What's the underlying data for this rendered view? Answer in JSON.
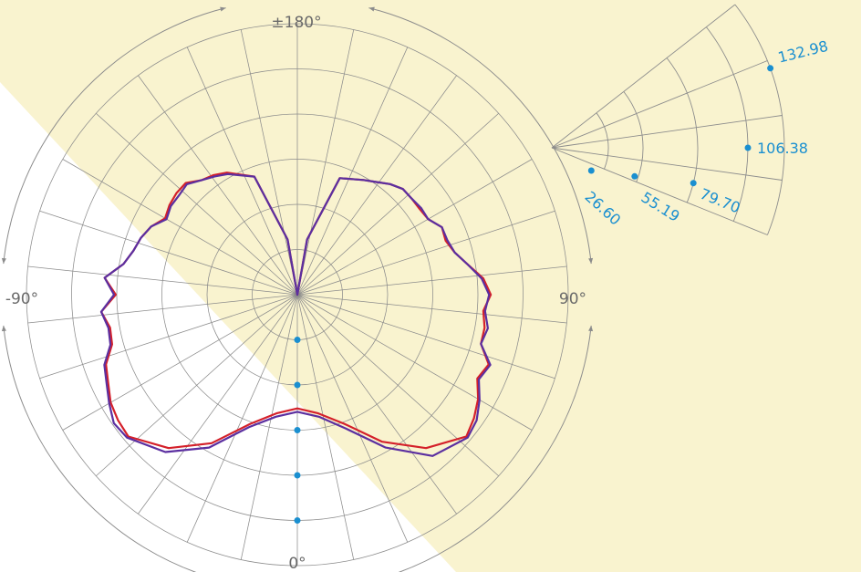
{
  "colors": {
    "background": "#ffffff",
    "highlight": "#f9f3cf",
    "grid": "#8c8c8c",
    "label_text": "#6a6a6a",
    "scale_accent": "#1a8fd0",
    "series_red": "#d4202a",
    "series_purple": "#5b2fa0"
  },
  "chart_data": {
    "type": "polar",
    "title": "",
    "angle_labels": [
      {
        "angle": 180,
        "text": "±180°"
      },
      {
        "angle": 90,
        "text": "90°"
      },
      {
        "angle": 0,
        "text": "0°"
      },
      {
        "angle": -90,
        "text": "-90°"
      }
    ],
    "radial_scale": {
      "max": 159.6,
      "rings": 6,
      "spokes_every_deg": 12,
      "labels": [
        26.6,
        55.19,
        79.7,
        106.38,
        132.98
      ],
      "label_text": [
        "26.60",
        "55.19",
        "79.70",
        "106.38",
        "132.98"
      ]
    },
    "series": [
      {
        "color": "#d4202a",
        "points": [
          [
            0,
            67
          ],
          [
            10,
            71
          ],
          [
            20,
            81
          ],
          [
            30,
            100
          ],
          [
            40,
            118
          ],
          [
            50,
            130
          ],
          [
            55,
            127
          ],
          [
            60,
            123
          ],
          [
            65,
            117
          ],
          [
            70,
            120
          ],
          [
            75,
            112
          ],
          [
            80,
            112
          ],
          [
            85,
            110
          ],
          [
            90,
            114
          ],
          [
            95,
            110
          ],
          [
            100,
            102
          ],
          [
            105,
            96
          ],
          [
            110,
            93
          ],
          [
            115,
            94
          ],
          [
            120,
            89
          ],
          [
            125,
            88
          ],
          [
            130,
            88
          ],
          [
            135,
            88
          ],
          [
            140,
            85
          ],
          [
            145,
            81
          ],
          [
            150,
            78
          ],
          [
            160,
            73
          ],
          [
            170,
            33
          ],
          [
            180,
            0
          ],
          [
            -170,
            33
          ],
          [
            -160,
            74
          ],
          [
            -150,
            83
          ],
          [
            -145,
            86
          ],
          [
            -140,
            88
          ],
          [
            -135,
            93
          ],
          [
            -130,
            93
          ],
          [
            -125,
            92
          ],
          [
            -120,
            90
          ],
          [
            -115,
            95
          ],
          [
            -110,
            98
          ],
          [
            -105,
            100
          ],
          [
            -100,
            104
          ],
          [
            -95,
            114
          ],
          [
            -90,
            107
          ],
          [
            -85,
            116
          ],
          [
            -80,
            112
          ],
          [
            -75,
            113
          ],
          [
            -70,
            120
          ],
          [
            -65,
            123
          ],
          [
            -60,
            127
          ],
          [
            -55,
            129
          ],
          [
            -50,
            130
          ],
          [
            -40,
            118
          ],
          [
            -30,
            101
          ],
          [
            -20,
            81
          ],
          [
            -10,
            71
          ]
        ]
      },
      {
        "color": "#5b2fa0",
        "points": [
          [
            0,
            69
          ],
          [
            10,
            73
          ],
          [
            20,
            84
          ],
          [
            30,
            104
          ],
          [
            40,
            124
          ],
          [
            50,
            131
          ],
          [
            55,
            129
          ],
          [
            60,
            124
          ],
          [
            65,
            118
          ],
          [
            70,
            121
          ],
          [
            75,
            112
          ],
          [
            80,
            114
          ],
          [
            85,
            111
          ],
          [
            90,
            113
          ],
          [
            95,
            109
          ],
          [
            100,
            102
          ],
          [
            105,
            96
          ],
          [
            110,
            94
          ],
          [
            115,
            94
          ],
          [
            120,
            89
          ],
          [
            125,
            89
          ],
          [
            130,
            88
          ],
          [
            135,
            88
          ],
          [
            140,
            85
          ],
          [
            145,
            81
          ],
          [
            150,
            78
          ],
          [
            160,
            73
          ],
          [
            170,
            33
          ],
          [
            180,
            0
          ],
          [
            -170,
            33
          ],
          [
            -160,
            74
          ],
          [
            -150,
            82
          ],
          [
            -145,
            85
          ],
          [
            -140,
            88
          ],
          [
            -135,
            92
          ],
          [
            -130,
            91
          ],
          [
            -125,
            91
          ],
          [
            -120,
            89
          ],
          [
            -115,
            95
          ],
          [
            -110,
            98
          ],
          [
            -105,
            100
          ],
          [
            -100,
            104
          ],
          [
            -95,
            114
          ],
          [
            -90,
            108
          ],
          [
            -85,
            116
          ],
          [
            -80,
            113
          ],
          [
            -75,
            114
          ],
          [
            -70,
            121
          ],
          [
            -65,
            124
          ],
          [
            -60,
            128
          ],
          [
            -55,
            132
          ],
          [
            -50,
            131
          ],
          [
            -40,
            121
          ],
          [
            -30,
            104
          ],
          [
            -20,
            83
          ],
          [
            -10,
            73
          ]
        ]
      }
    ]
  }
}
